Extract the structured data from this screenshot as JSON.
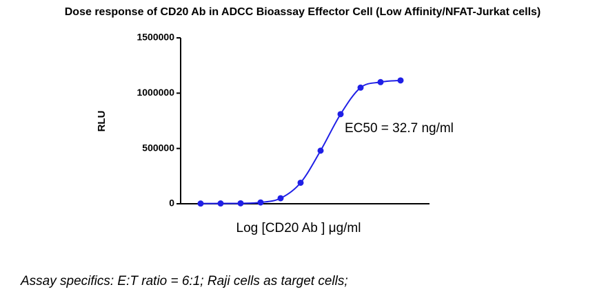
{
  "chart_data": {
    "type": "line",
    "title": "Dose response of CD20 Ab in ADCC Bioassay Effector Cell (Low Affinity/NFAT-Jurkat cells)",
    "y_label": "RLU",
    "x_label": "Log [CD20 Ab ] μg/ml",
    "annotation": "EC50 = 32.7 ng/ml",
    "footnote": "Assay specifics: E:T ratio = 6:1; Raji cells as target cells;",
    "categories": [
      null,
      null,
      null,
      null,
      null,
      null,
      null,
      null,
      null,
      null,
      null
    ],
    "series": [
      {
        "name": "CD20 Ab",
        "color": "#1f1fe6",
        "values": [
          2000,
          3000,
          4000,
          12000,
          50000,
          190000,
          480000,
          810000,
          1050000,
          1100000,
          1115000
        ]
      }
    ],
    "ylim": [
      0,
      1500000
    ],
    "yticks": [
      0,
      500000,
      1000000,
      1500000
    ],
    "legend": false
  }
}
